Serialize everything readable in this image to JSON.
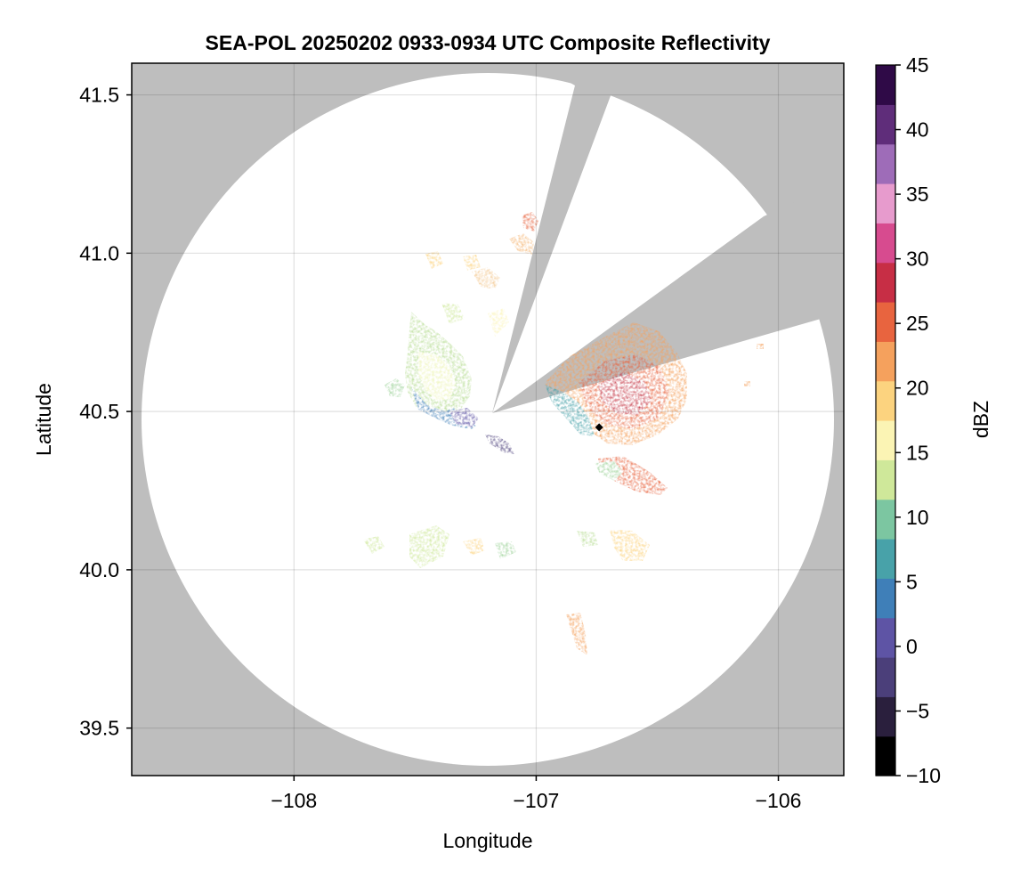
{
  "chart_data": {
    "type": "heatmap",
    "title": "SEA-POL 20250202 0933-0934 UTC Composite Reflectivity",
    "xlabel": "Longitude",
    "ylabel": "Latitude",
    "xlim": [
      -108.67,
      -105.73
    ],
    "ylim": [
      39.35,
      41.6
    ],
    "x_ticks": [
      -108,
      -107,
      -106
    ],
    "x_tick_labels": [
      "−108",
      "−107",
      "−106"
    ],
    "y_ticks": [
      39.5,
      40.0,
      40.5,
      41.0,
      41.5
    ],
    "y_tick_labels": [
      "39.5",
      "40.0",
      "40.5",
      "41.0",
      "41.5"
    ],
    "grid": true,
    "background_color": "#bebebe",
    "no_echo_color": "#ffffff",
    "radar": {
      "site": {
        "lon": -107.2,
        "lat": 40.48
      },
      "coverage_lat_range": [
        39.37,
        41.53
      ],
      "blocked_sectors": [
        {
          "lon": [
            -107.2,
            -106.83,
            -106.86
          ],
          "lat": [
            40.48,
            41.53,
            41.5
          ]
        },
        {
          "lon": [
            -107.2,
            -106.05,
            -106.8
          ],
          "lat": [
            40.48,
            41.12,
            40.7
          ]
        }
      ]
    },
    "marker": {
      "lon": -106.74,
      "lat": 40.45,
      "shape": "diamond",
      "color": "#000000"
    },
    "colorbar": {
      "label": "dBZ",
      "range": [
        -10,
        45
      ],
      "ticks": [
        -10,
        -5,
        0,
        5,
        10,
        15,
        20,
        25,
        30,
        35,
        40,
        45
      ],
      "tick_labels": [
        "−10",
        "−5",
        "0",
        "5",
        "10",
        "15",
        "20",
        "25",
        "30",
        "35",
        "40",
        "45"
      ],
      "colormap": "spectral-reversed",
      "colors": [
        "#000000",
        "#2a1f3d",
        "#4b3f7a",
        "#5e54a5",
        "#3f7fb8",
        "#48a2a9",
        "#7cc6a1",
        "#cfe89a",
        "#fbf4b4",
        "#fcd37f",
        "#f5a15d",
        "#e8643f",
        "#c72e45",
        "#d74b8f",
        "#e79bcd",
        "#9e6cb8",
        "#5f2d7a",
        "#2f0a47"
      ]
    },
    "echo_regions": [
      {
        "lon": -107.42,
        "lat": 40.6,
        "value": 12
      },
      {
        "lon": -107.33,
        "lat": 40.5,
        "value": 3
      },
      {
        "lon": -107.12,
        "lat": 40.42,
        "value": 1
      },
      {
        "lon": -106.6,
        "lat": 40.57,
        "value": 27
      },
      {
        "lon": -106.55,
        "lat": 40.55,
        "value": 29
      },
      {
        "lon": -106.8,
        "lat": 40.55,
        "value": 12
      },
      {
        "lon": -106.58,
        "lat": 40.28,
        "value": 25
      },
      {
        "lon": -106.97,
        "lat": 41.1,
        "value": 27
      },
      {
        "lon": -107.1,
        "lat": 40.12,
        "value": 14
      },
      {
        "lon": -107.38,
        "lat": 40.06,
        "value": 14
      },
      {
        "lon": -106.53,
        "lat": 40.05,
        "value": 19
      },
      {
        "lon": -106.8,
        "lat": 39.8,
        "value": 20
      },
      {
        "lon": -107.25,
        "lat": 40.96,
        "value": 18
      }
    ]
  }
}
